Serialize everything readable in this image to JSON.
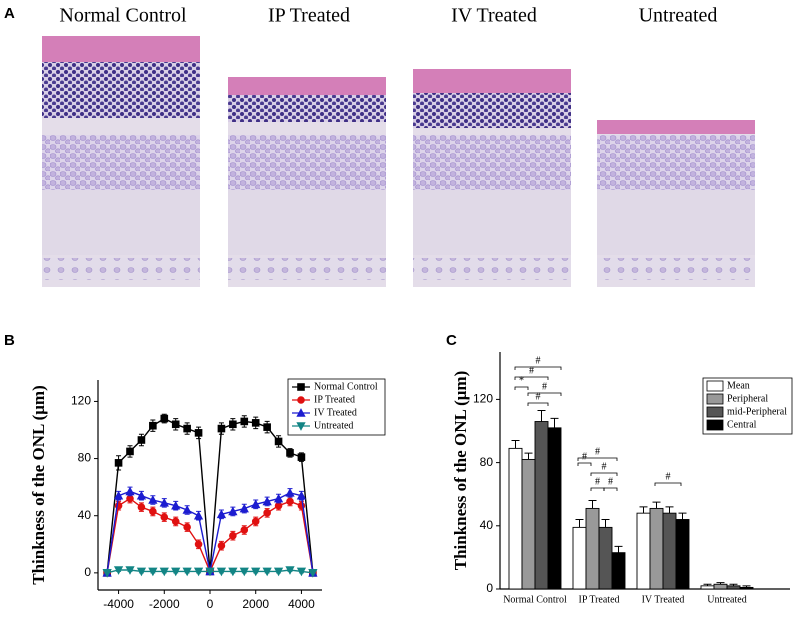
{
  "figure": {
    "panel_labels": [
      "A",
      "B",
      "C"
    ],
    "image_titles": [
      "Normal Control",
      "IP Treated",
      "IV Treated",
      "Untreated"
    ]
  },
  "chart_data": [
    {
      "type": "line",
      "y_label": "Thinkness of the ONL (μm)",
      "x": [
        -4500,
        -4000,
        -3500,
        -3000,
        -2500,
        -2000,
        -1500,
        -1000,
        -500,
        0,
        500,
        1000,
        1500,
        2000,
        2500,
        3000,
        3500,
        4000,
        4500
      ],
      "xlim": [
        -4900,
        4900
      ],
      "xticks": [
        -4000,
        -2000,
        0,
        2000,
        4000
      ],
      "ylim": [
        -12,
        135
      ],
      "yticks": [
        0,
        40,
        80,
        120
      ],
      "legend": "upper right",
      "series": [
        {
          "name": "Normal Control",
          "color": "#000000",
          "marker": "square",
          "values": [
            0,
            77,
            85,
            93,
            103,
            108,
            104,
            101,
            98,
            1,
            101,
            104,
            106,
            105,
            102,
            92,
            84,
            81,
            0
          ],
          "errors": [
            0,
            5,
            4,
            4,
            4,
            3,
            4,
            4,
            4,
            0,
            4,
            4,
            4,
            4,
            4,
            4,
            3,
            3,
            0
          ]
        },
        {
          "name": "IP Treated",
          "color": "#e01010",
          "marker": "circle",
          "values": [
            0,
            47,
            52,
            46,
            43,
            39,
            36,
            32,
            20,
            1,
            19,
            26,
            30,
            36,
            42,
            47,
            50,
            47,
            0
          ],
          "errors": [
            0,
            3,
            3,
            3,
            3,
            3,
            3,
            3,
            3,
            0,
            3,
            3,
            3,
            3,
            3,
            3,
            3,
            3,
            0
          ]
        },
        {
          "name": "IV Treated",
          "color": "#1c1cd0",
          "marker": "triangle-up",
          "values": [
            0,
            54,
            57,
            54,
            51,
            49,
            47,
            44,
            40,
            1,
            41,
            43,
            45,
            48,
            50,
            52,
            56,
            54,
            0
          ],
          "errors": [
            0,
            3,
            3,
            3,
            3,
            3,
            3,
            3,
            3,
            0,
            3,
            3,
            3,
            3,
            3,
            3,
            3,
            3,
            0
          ]
        },
        {
          "name": "Untreated",
          "color": "#138585",
          "marker": "triangle-down",
          "values": [
            0,
            2,
            2,
            1,
            1,
            1,
            1,
            1,
            1,
            1,
            1,
            1,
            1,
            1,
            1,
            1,
            2,
            1,
            0
          ],
          "errors": [
            0,
            1,
            1,
            1,
            1,
            1,
            1,
            1,
            1,
            0,
            1,
            1,
            1,
            1,
            1,
            1,
            1,
            1,
            0
          ]
        }
      ]
    },
    {
      "type": "bar",
      "y_label": "Thinkness of the ONL (μm)",
      "categories": [
        "Normal Control",
        "IP Treated",
        "IV Treated",
        "Untreated"
      ],
      "ylim": [
        0,
        150
      ],
      "yticks": [
        0,
        40,
        80,
        120
      ],
      "legend": "upper right",
      "series": [
        {
          "name": "Mean",
          "color": "#ffffff",
          "values": [
            89,
            39,
            48,
            2
          ],
          "errors": [
            5,
            5,
            4,
            1
          ]
        },
        {
          "name": "Peripheral",
          "color": "#999999",
          "values": [
            82,
            51,
            51,
            3
          ],
          "errors": [
            4,
            5,
            4,
            1
          ]
        },
        {
          "name": "mid-Peripheral",
          "color": "#555555",
          "values": [
            106,
            39,
            48,
            2
          ],
          "errors": [
            7,
            5,
            4,
            1
          ]
        },
        {
          "name": "Central",
          "color": "#000000",
          "values": [
            102,
            23,
            44,
            1
          ],
          "errors": [
            6,
            4,
            4,
            1
          ]
        }
      ],
      "annotations": [
        "#",
        "#",
        "*",
        "#",
        "#",
        "#",
        "#",
        "#",
        "#",
        "#",
        "#"
      ]
    }
  ]
}
